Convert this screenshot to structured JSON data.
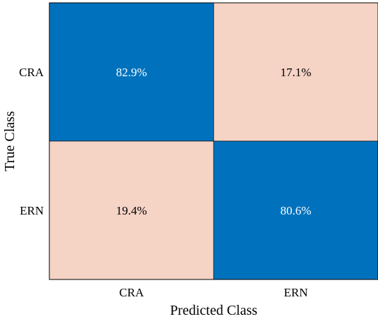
{
  "chart_data": {
    "type": "heatmap",
    "title": "",
    "xlabel": "Predicted Class",
    "ylabel": "True Class",
    "x_categories": [
      "CRA",
      "ERN"
    ],
    "y_categories": [
      "CRA",
      "ERN"
    ],
    "cells": [
      {
        "true": "CRA",
        "predicted": "CRA",
        "value": 82.9,
        "label": "82.9%"
      },
      {
        "true": "CRA",
        "predicted": "ERN",
        "value": 17.1,
        "label": "17.1%"
      },
      {
        "true": "ERN",
        "predicted": "CRA",
        "value": 19.4,
        "label": "19.4%"
      },
      {
        "true": "ERN",
        "predicted": "ERN",
        "value": 80.6,
        "label": "80.6%"
      }
    ],
    "colors": {
      "high": "#0072BD",
      "low": "#F5D3C5",
      "text_on_high": "#ffffff",
      "text_on_low": "#000000",
      "border": "#000000"
    },
    "grid": false,
    "legend": "none"
  }
}
